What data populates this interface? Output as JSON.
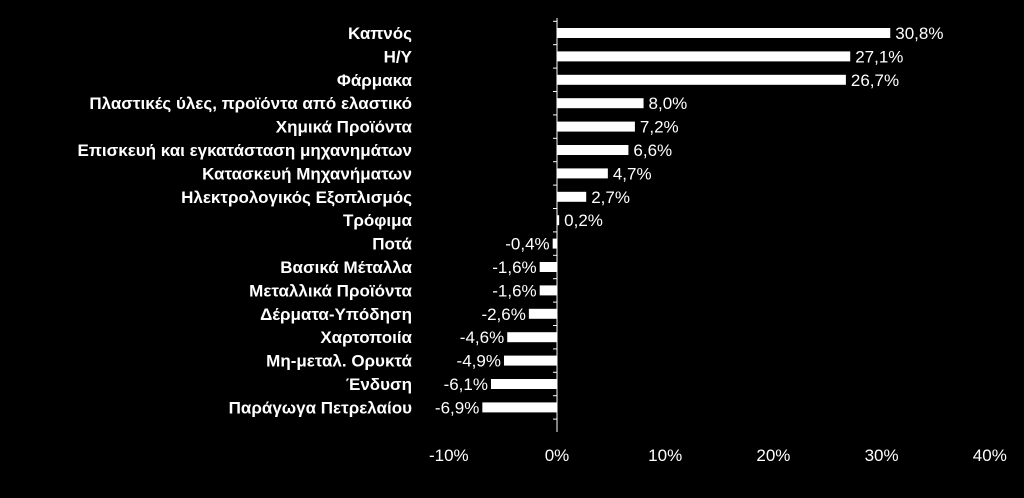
{
  "chart_data": {
    "type": "bar",
    "orientation": "horizontal",
    "categories": [
      "Καπνός",
      "Η/Υ",
      "Φάρμακα",
      "Πλαστικές ύλες, προϊόντα από ελαστικό",
      "Χημικά Προϊόντα",
      "Επισκευή και εγκατάσταση μηχανημάτων",
      "Κατασκευή Μηχανήματων",
      "Ηλεκτρολογικός Εξοπλισμός",
      "Τρόφιμα",
      "Ποτά",
      "Βασικά Μέταλλα",
      "Μεταλλικά Προϊόντα",
      "Δέρματα-Υπόδηση",
      "Χαρτοποιία",
      "Μη-μεταλ. Ορυκτά",
      "Ένδυση",
      "Παράγωγα Πετρελαίου"
    ],
    "values": [
      30.8,
      27.1,
      26.7,
      8.0,
      7.2,
      6.6,
      4.7,
      2.7,
      0.2,
      -0.4,
      -1.6,
      -1.6,
      -2.6,
      -4.6,
      -4.9,
      -6.1,
      -6.9
    ],
    "value_labels": [
      "30,8%",
      "27,1%",
      "26,7%",
      "8,0%",
      "7,2%",
      "6,6%",
      "4,7%",
      "2,7%",
      "0,2%",
      "-0,4%",
      "-1,6%",
      "-1,6%",
      "-2,6%",
      "-4,6%",
      "-4,9%",
      "-6,1%",
      "-6,9%"
    ],
    "xlim": [
      -10,
      40
    ],
    "x_ticks": [
      -10,
      0,
      10,
      20,
      30,
      40
    ],
    "x_tick_labels": [
      "-10%",
      "0%",
      "10%",
      "20%",
      "30%",
      "40%"
    ],
    "bar_color": "#ffffff",
    "background_color": "#000000",
    "text_color": "#ffffff",
    "grid": false,
    "legend": "none"
  }
}
